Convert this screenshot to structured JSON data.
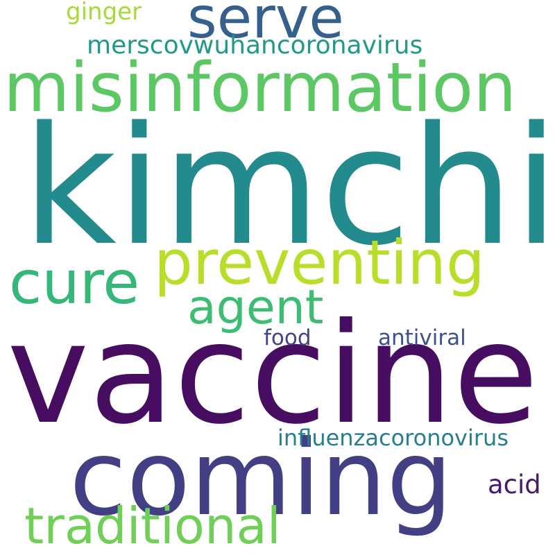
{
  "words": [
    {
      "text": "kimchi",
      "color": "#238a8d"
    },
    {
      "text": "vaccine",
      "color": "#470d60"
    },
    {
      "text": "coming",
      "color": "#423f85"
    },
    {
      "text": "misinformation",
      "color": "#5cc863"
    },
    {
      "text": "preventing",
      "color": "#b8de29"
    },
    {
      "text": "cure",
      "color": "#35b779"
    },
    {
      "text": "serve",
      "color": "#355f8d"
    },
    {
      "text": "agent",
      "color": "#3dbc74"
    },
    {
      "text": "traditional",
      "color": "#70cf57"
    },
    {
      "text": "merscovwuhancoronavirus",
      "color": "#1f9a8a"
    },
    {
      "text": "influenzacoronovirus",
      "color": "#277f8e"
    },
    {
      "text": "ginger",
      "color": "#a5db36"
    },
    {
      "text": "antiviral",
      "color": "#3b528b"
    },
    {
      "text": "food",
      "color": "#414487"
    },
    {
      "text": "acid",
      "color": "#48186a"
    }
  ]
}
